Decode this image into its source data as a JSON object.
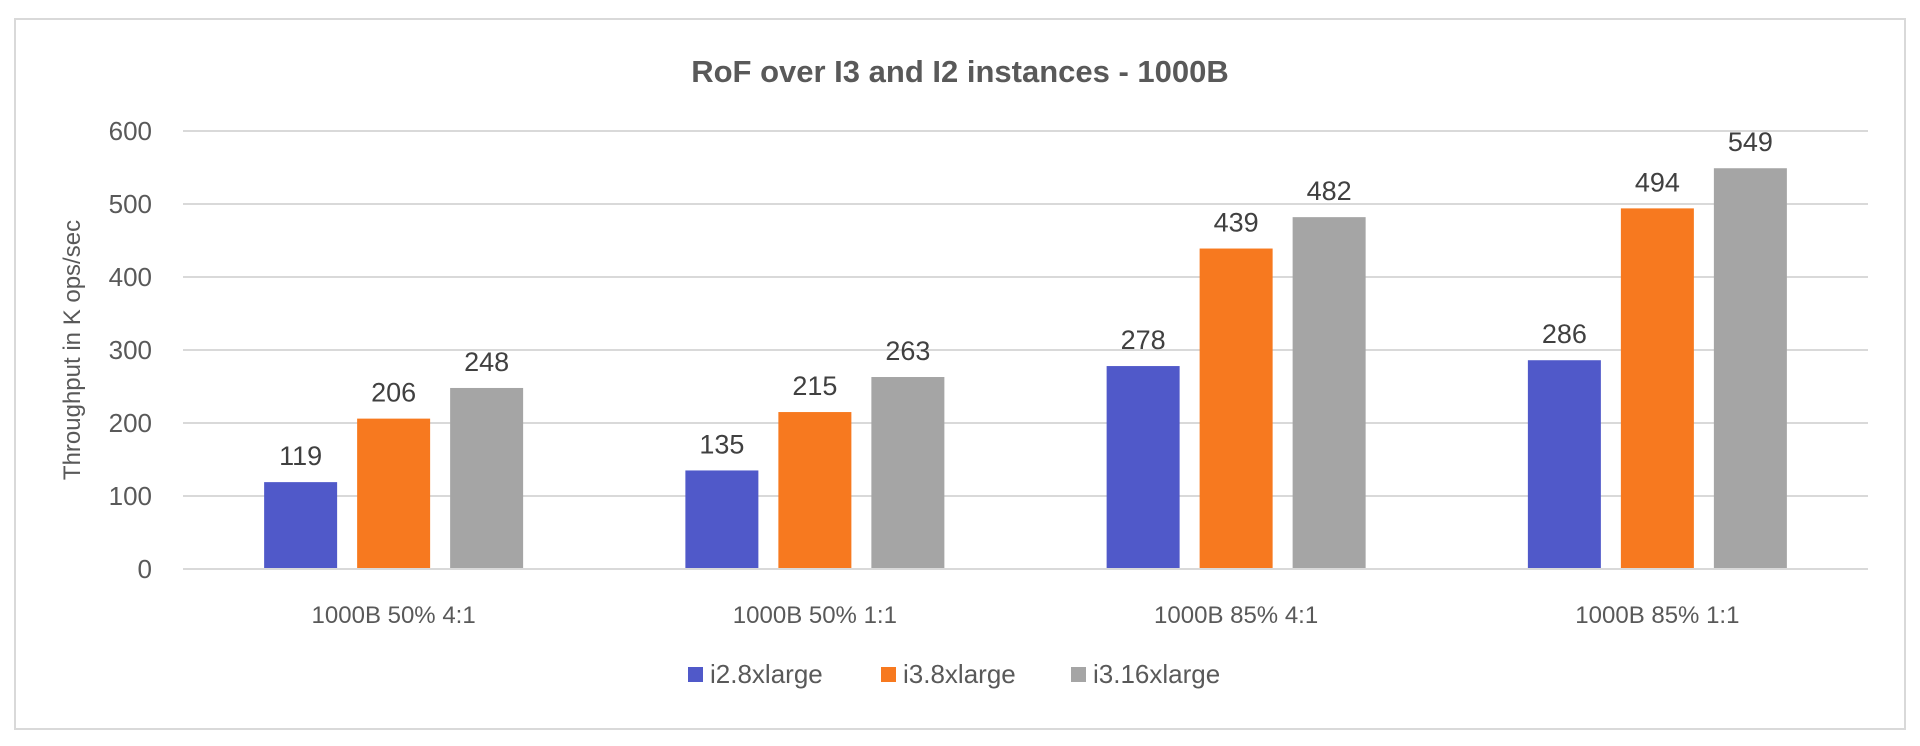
{
  "chart_data": {
    "type": "bar",
    "title": "RoF over I3 and I2 instances - 1000B",
    "xlabel": "",
    "ylabel": "Throughput in K ops/sec",
    "ylim": [
      0,
      600
    ],
    "yticks": [
      0,
      100,
      200,
      300,
      400,
      500,
      600
    ],
    "grid": true,
    "legend_position": "bottom",
    "categories": [
      "1000B 50% 4:1",
      "1000B 50% 1:1",
      "1000B 85% 4:1",
      "1000B 85% 1:1"
    ],
    "series": [
      {
        "name": "i2.8xlarge",
        "color": "#5059c9",
        "values": [
          119,
          135,
          278,
          286
        ]
      },
      {
        "name": "i3.8xlarge",
        "color": "#f7791f",
        "values": [
          206,
          215,
          439,
          494
        ]
      },
      {
        "name": "i3.16xlarge",
        "color": "#a5a5a5",
        "values": [
          248,
          263,
          482,
          549
        ]
      }
    ]
  }
}
